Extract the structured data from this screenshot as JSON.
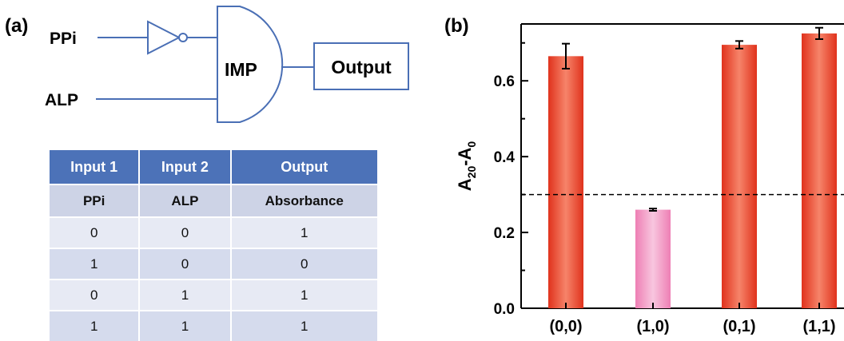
{
  "panel_a": {
    "label": "(a)",
    "inputs": [
      "PPi",
      "ALP"
    ],
    "gate": "IMP",
    "output": "Output",
    "table": {
      "headers": [
        "Input 1",
        "Input 2",
        "Output"
      ],
      "subheaders": [
        "PPi",
        "ALP",
        "Absorbance"
      ],
      "rows": [
        [
          "0",
          "0",
          "1"
        ],
        [
          "1",
          "0",
          "0"
        ],
        [
          "0",
          "1",
          "1"
        ],
        [
          "1",
          "1",
          "1"
        ]
      ]
    }
  },
  "panel_b": {
    "label": "(b)"
  },
  "chart_data": {
    "type": "bar",
    "categories": [
      "(0,0)",
      "(1,0)",
      "(0,1)",
      "(1,1)"
    ],
    "values": [
      0.665,
      0.26,
      0.695,
      0.725
    ],
    "errors": [
      0.033,
      0.003,
      0.01,
      0.015
    ],
    "ylabel": "A20-A0",
    "ylabel_main": "A",
    "ylabel_sub1": "20",
    "ylabel_mid": "-A",
    "ylabel_sub2": "0",
    "ylim": [
      0,
      0.75
    ],
    "yticks": [
      "0.0",
      "0.2",
      "0.4",
      "0.6"
    ],
    "threshold": 0.3,
    "colors": [
      "#ee4a2c",
      "#f59ac4",
      "#ee4a2c",
      "#ee4a2c"
    ]
  }
}
